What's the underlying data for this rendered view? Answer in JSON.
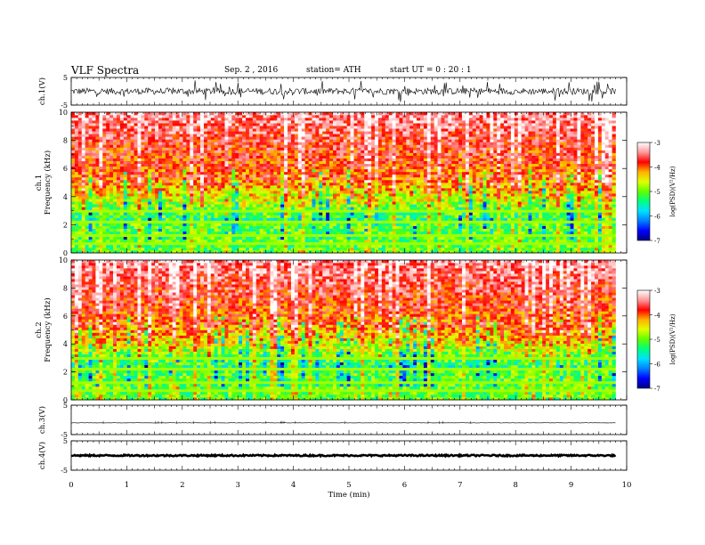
{
  "header": {
    "title": "VLF  Spectra",
    "date": "Sep. 2  , 2016",
    "station": "station= ATH",
    "start": "start  UT  =   0  : 20 : 1"
  },
  "chart_data": {
    "type": "heatmap",
    "xlabel": "Time  (min)",
    "xlim": [
      0,
      10
    ],
    "xticks": [
      "0",
      "1",
      "2",
      "3",
      "4",
      "5",
      "6",
      "7",
      "8",
      "9",
      "10"
    ],
    "data_end_min": 9.8,
    "panels": [
      {
        "id": "ch1-wave",
        "type": "line",
        "ylabel": "ch.1(V)",
        "ylim": [
          -5,
          5
        ],
        "yticks": [
          "5",
          "-5"
        ],
        "baseline": 0,
        "amplitude": 1.2,
        "spikes": true
      },
      {
        "id": "ch1-spec",
        "type": "heatmap",
        "ylabel": [
          "ch.1",
          "Frequency  (kHz)"
        ],
        "ylim": [
          0,
          10
        ],
        "yticks": [
          "0",
          "2",
          "4",
          "6",
          "8",
          "10"
        ],
        "colorbar": {
          "label": "log(PSD)(V²/Hz)",
          "range": [
            -7,
            -3
          ],
          "ticks": [
            "-3",
            "-4",
            "-5",
            "-6",
            "-7"
          ]
        }
      },
      {
        "id": "ch2-spec",
        "type": "heatmap",
        "ylabel": [
          "ch.2",
          "Frequency  (kHz)"
        ],
        "ylim": [
          0,
          10
        ],
        "yticks": [
          "0",
          "2",
          "4",
          "6",
          "8",
          "10"
        ],
        "colorbar": {
          "label": "log(PSD)(V²/Hz)",
          "range": [
            -7,
            -3
          ],
          "ticks": [
            "-3",
            "-4",
            "-5",
            "-6",
            "-7"
          ]
        }
      },
      {
        "id": "ch3-wave",
        "type": "line",
        "ylabel": "ch.3(V)",
        "ylim": [
          -5,
          5
        ],
        "yticks": [
          "5",
          "-5"
        ],
        "baseline": -1,
        "amplitude": 0.05,
        "spikes": false
      },
      {
        "id": "ch4-wave",
        "type": "line",
        "ylabel": "ch.4(V)",
        "ylim": [
          -5,
          5
        ],
        "yticks": [
          "5",
          "-5"
        ],
        "baseline": 0,
        "amplitude": 0.25,
        "spikes": false
      }
    ],
    "colormap": [
      "#000080",
      "#0000ff",
      "#0080ff",
      "#00e0ff",
      "#00ff80",
      "#60ff00",
      "#e0ff00",
      "#ffb000",
      "#ff0000",
      "#ff9999",
      "#ffffff"
    ]
  }
}
